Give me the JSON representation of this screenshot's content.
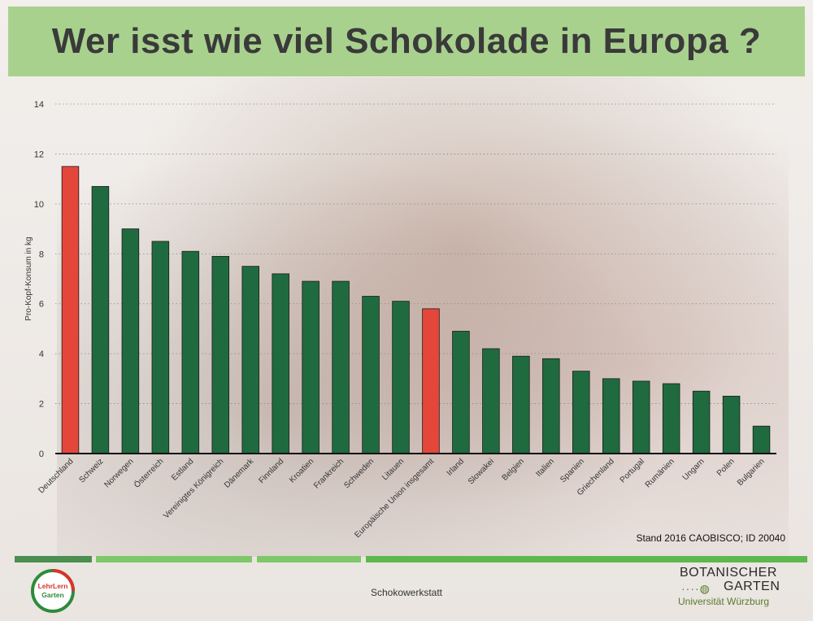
{
  "title": "Wer isst wie viel Schokolade in Europa ?",
  "source_note": "Stand 2016 CAOBISCO; ID 20040",
  "footer_label": "Schokowerkstatt",
  "logo_left": {
    "line1": "LehrLern",
    "line2": "Garten",
    "colors": [
      "#d9342b",
      "#2e8b3a"
    ]
  },
  "logo_right": {
    "line1": "BOTANISCHER",
    "line2": "GARTEN",
    "line3": "Universität Würzburg",
    "icon": "leaf-icon"
  },
  "colors": {
    "highlight": "#e5463a",
    "default": "#1f6b3f",
    "title_band": "#a9d18e",
    "stripe": [
      "#4a8f4f",
      "#7ec86a",
      "#7ec86a",
      "#5fb84f"
    ]
  },
  "chart_data": {
    "type": "bar",
    "ylabel": "Pro-Kopf-Konsum in kg",
    "ylim": [
      0,
      14
    ],
    "yticks": [
      0,
      2,
      4,
      6,
      8,
      10,
      12,
      14
    ],
    "grid": "horizontal dotted",
    "categories": [
      "Deutschland",
      "Schweiz",
      "Norwegen",
      "Österreich",
      "Estland",
      "Vereinigtes Königreich",
      "Dänemark",
      "Finnland",
      "Kroatien",
      "Frankreich",
      "Schweden",
      "Litauen",
      "Europäische Union insgesamt",
      "Irland",
      "Slowakei",
      "Belgien",
      "Italien",
      "Spanien",
      "Griechenland",
      "Portugal",
      "Rumänien",
      "Ungarn",
      "Polen",
      "Bulgarien"
    ],
    "values": [
      11.5,
      10.7,
      9.0,
      8.5,
      8.1,
      7.9,
      7.5,
      7.2,
      6.9,
      6.9,
      6.3,
      6.1,
      5.8,
      4.9,
      4.2,
      3.9,
      3.8,
      3.3,
      3.0,
      2.9,
      2.8,
      2.5,
      2.3,
      1.1
    ],
    "highlighted": [
      "Deutschland",
      "Europäische Union insgesamt"
    ]
  }
}
